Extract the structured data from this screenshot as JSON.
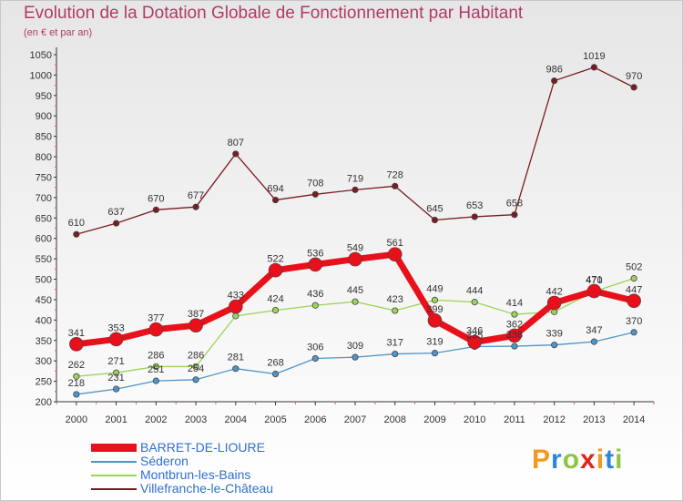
{
  "title": "Evolution de la Dotation Globale de Fonctionnement par Habitant",
  "subtitle": "(en € et par an)",
  "brand": {
    "text": "Proxiti",
    "colors": [
      "#f39a1d",
      "#2e86d6",
      "#8cc63f",
      "#e2231a"
    ]
  },
  "chart_data": {
    "type": "line",
    "title": "Evolution de la Dotation Globale de Fonctionnement par Habitant",
    "ylabel": "(en € et par an)",
    "xlabel": "",
    "x": [
      "2000",
      "2001",
      "2002",
      "2003",
      "2004",
      "2005",
      "2006",
      "2007",
      "2008",
      "2009",
      "2010",
      "2011",
      "2012",
      "2013",
      "2014"
    ],
    "ylim": [
      200,
      1050
    ],
    "yticks": [
      "200",
      "250",
      "300",
      "350",
      "400",
      "450",
      "500",
      "550",
      "600",
      "650",
      "700",
      "750",
      "800",
      "850",
      "900",
      "950",
      "1000",
      "1050"
    ],
    "grid": false,
    "legend_position": "bottom-left",
    "series": [
      {
        "name": "BARRET-DE-LIOURE",
        "color": "#e8101a",
        "values": [
          341,
          353,
          377,
          387,
          433,
          522,
          536,
          549,
          561,
          399,
          346,
          362,
          442,
          471,
          447
        ],
        "labels": [
          "341",
          "353",
          "377",
          "387",
          "433",
          "522",
          "536",
          "549",
          "561",
          "399",
          "346",
          "362",
          "442",
          "471",
          "447"
        ]
      },
      {
        "name": "Séderon",
        "color": "#4f95c9",
        "values": [
          218,
          231,
          251,
          254,
          281,
          268,
          306,
          309,
          317,
          319,
          335,
          336,
          339,
          347,
          370
        ],
        "labels": [
          "218",
          "231",
          "251",
          "254",
          "281",
          "268",
          "306",
          "309",
          "317",
          "319",
          "335",
          "336",
          "339",
          "347",
          "370"
        ]
      },
      {
        "name": "Montbrun-les-Bains",
        "color": "#9ad45a",
        "values": [
          262,
          271,
          286,
          286,
          410,
          424,
          436,
          445,
          423,
          449,
          444,
          414,
          420,
          470,
          502
        ],
        "labels": [
          "262",
          "271",
          "286",
          "286",
          "",
          "424",
          "436",
          "445",
          "423",
          "449",
          "444",
          "414",
          "",
          "470",
          "502"
        ]
      },
      {
        "name": "Villefranche-le-Château",
        "color": "#7a1c22",
        "values": [
          610,
          637,
          670,
          677,
          807,
          694,
          708,
          719,
          728,
          645,
          653,
          658,
          986,
          1019,
          970
        ],
        "labels": [
          "610",
          "637",
          "670",
          "677",
          "807",
          "694",
          "708",
          "719",
          "728",
          "645",
          "653",
          "658",
          "986",
          "1019",
          "970"
        ]
      }
    ]
  }
}
